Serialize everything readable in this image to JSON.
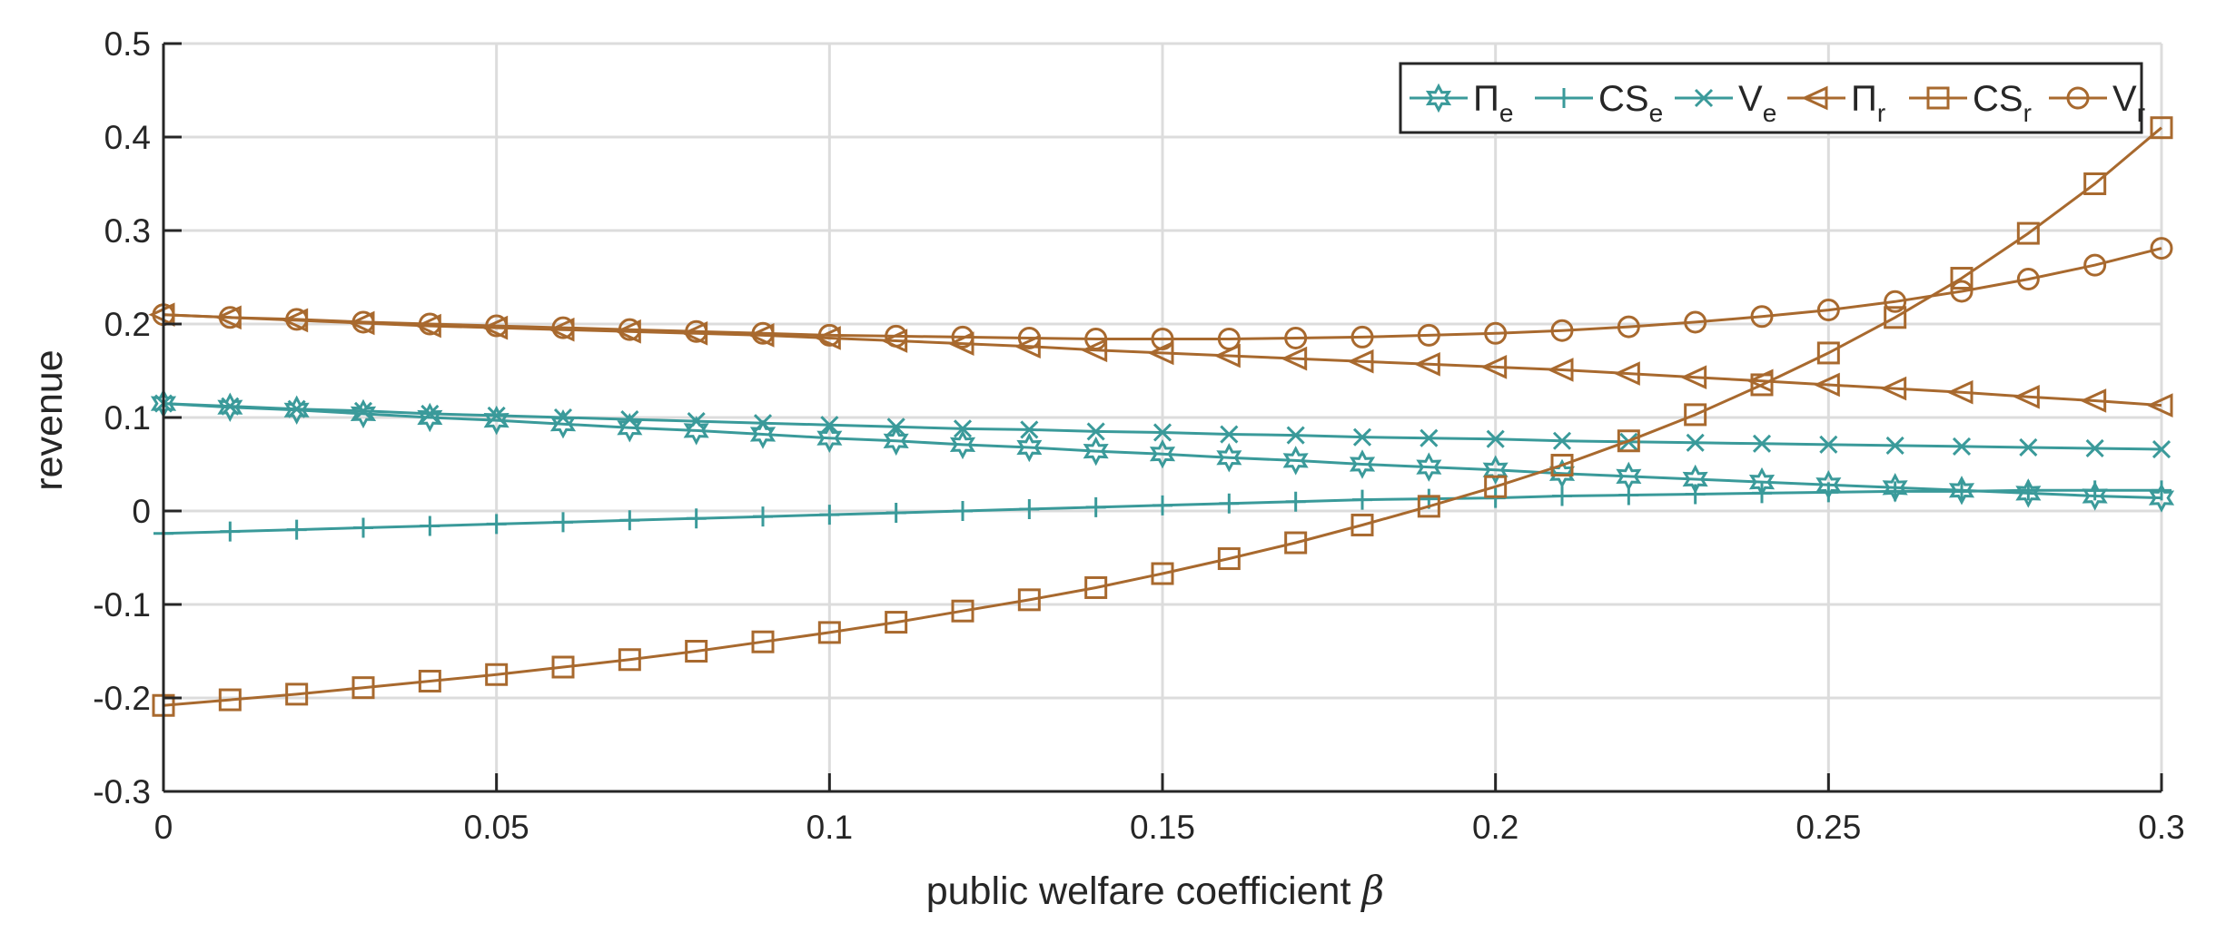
{
  "chart_data": {
    "type": "line",
    "title": "",
    "xlabel": "public welfare coefficient",
    "xlabel_symbol": "β",
    "ylabel": "revenue",
    "xlim": [
      0,
      0.3
    ],
    "ylim": [
      -0.3,
      0.5
    ],
    "grid": true,
    "legend_position": "top-right",
    "x_ticks": [
      0,
      0.05,
      0.1,
      0.15,
      0.2,
      0.25,
      0.3
    ],
    "x_tick_labels": [
      "0",
      "0.05",
      "0.1",
      "0.15",
      "0.2",
      "0.25",
      "0.3"
    ],
    "y_ticks": [
      -0.3,
      -0.2,
      -0.1,
      0,
      0.1,
      0.2,
      0.3,
      0.4,
      0.5
    ],
    "y_tick_labels": [
      "-0.3",
      "-0.2",
      "-0.1",
      "0",
      "0.1",
      "0.2",
      "0.3",
      "0.4",
      "0.5"
    ],
    "x": [
      0,
      0.01,
      0.02,
      0.03,
      0.04,
      0.05,
      0.06,
      0.07,
      0.08,
      0.09,
      0.1,
      0.11,
      0.12,
      0.13,
      0.14,
      0.15,
      0.16,
      0.17,
      0.18,
      0.19,
      0.2,
      0.21,
      0.22,
      0.23,
      0.24,
      0.25,
      0.26,
      0.27,
      0.28,
      0.29,
      0.3
    ],
    "series": [
      {
        "name": "Π",
        "sub": "e",
        "color": "#3a9a9a",
        "marker": "hexagram",
        "values": [
          0.115,
          0.111,
          0.108,
          0.104,
          0.1,
          0.097,
          0.093,
          0.089,
          0.086,
          0.082,
          0.078,
          0.075,
          0.071,
          0.068,
          0.064,
          0.061,
          0.057,
          0.054,
          0.05,
          0.047,
          0.044,
          0.04,
          0.037,
          0.034,
          0.031,
          0.028,
          0.025,
          0.022,
          0.019,
          0.016,
          0.014
        ]
      },
      {
        "name": "CS",
        "sub": "e",
        "color": "#3a9a9a",
        "marker": "plus",
        "values": [
          -0.024,
          -0.022,
          -0.02,
          -0.018,
          -0.016,
          -0.014,
          -0.012,
          -0.01,
          -0.008,
          -0.006,
          -0.004,
          -0.002,
          0.0,
          0.002,
          0.004,
          0.006,
          0.008,
          0.01,
          0.012,
          0.013,
          0.014,
          0.016,
          0.017,
          0.018,
          0.019,
          0.02,
          0.021,
          0.021,
          0.022,
          0.022,
          0.022
        ]
      },
      {
        "name": "V",
        "sub": "e",
        "color": "#3a9a9a",
        "marker": "x",
        "values": [
          0.115,
          0.112,
          0.109,
          0.107,
          0.104,
          0.102,
          0.1,
          0.098,
          0.096,
          0.094,
          0.092,
          0.09,
          0.088,
          0.087,
          0.085,
          0.084,
          0.082,
          0.081,
          0.079,
          0.078,
          0.077,
          0.075,
          0.074,
          0.073,
          0.072,
          0.071,
          0.07,
          0.069,
          0.068,
          0.067,
          0.066
        ]
      },
      {
        "name": "Π",
        "sub": "r",
        "color": "#a8692e",
        "marker": "triangle-left",
        "values": [
          0.21,
          0.207,
          0.204,
          0.201,
          0.198,
          0.196,
          0.194,
          0.192,
          0.19,
          0.188,
          0.185,
          0.182,
          0.179,
          0.176,
          0.172,
          0.169,
          0.166,
          0.163,
          0.16,
          0.157,
          0.154,
          0.151,
          0.147,
          0.143,
          0.139,
          0.135,
          0.131,
          0.127,
          0.122,
          0.118,
          0.113
        ]
      },
      {
        "name": "CS",
        "sub": "r",
        "color": "#a8692e",
        "marker": "square",
        "values": [
          -0.208,
          -0.202,
          -0.196,
          -0.189,
          -0.182,
          -0.175,
          -0.167,
          -0.159,
          -0.15,
          -0.14,
          -0.13,
          -0.119,
          -0.107,
          -0.095,
          -0.082,
          -0.067,
          -0.051,
          -0.034,
          -0.015,
          0.005,
          0.026,
          0.049,
          0.075,
          0.103,
          0.135,
          0.169,
          0.207,
          0.249,
          0.297,
          0.35,
          0.41
        ]
      },
      {
        "name": "V",
        "sub": "r",
        "color": "#a8692e",
        "marker": "circle",
        "values": [
          0.21,
          0.207,
          0.205,
          0.202,
          0.2,
          0.198,
          0.196,
          0.194,
          0.192,
          0.19,
          0.188,
          0.187,
          0.186,
          0.185,
          0.184,
          0.184,
          0.184,
          0.185,
          0.186,
          0.188,
          0.19,
          0.193,
          0.197,
          0.202,
          0.208,
          0.215,
          0.224,
          0.235,
          0.248,
          0.263,
          0.281
        ]
      }
    ]
  }
}
